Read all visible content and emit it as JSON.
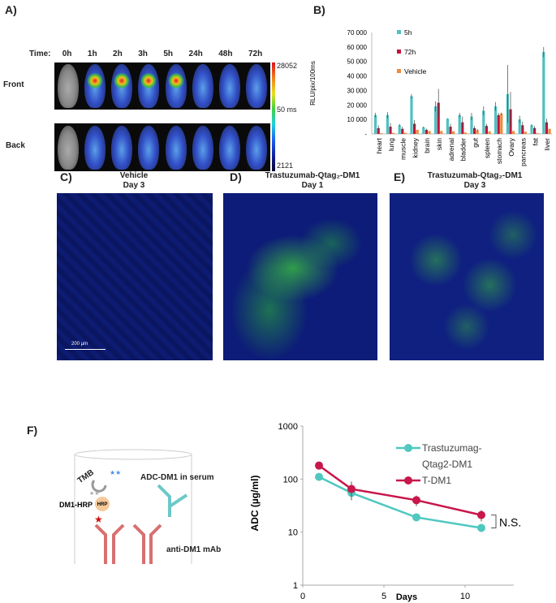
{
  "panelA": {
    "label": "A)",
    "time_label": "Time:",
    "times": [
      "0h",
      "1h",
      "2h",
      "3h",
      "5h",
      "24h",
      "48h",
      "72h"
    ],
    "rows": [
      "Front",
      "Back"
    ],
    "colorbar": {
      "max": "28052",
      "mid": "50 ms",
      "min": "2121"
    }
  },
  "panelB": {
    "label": "B)"
  },
  "chart_data": [
    {
      "type": "bar",
      "ylabel": "RLU/pix/100ms",
      "ylim": [
        0,
        70000
      ],
      "yticks": [
        "-",
        "10 000",
        "20 000",
        "30 000",
        "40 000",
        "50 000",
        "60 000",
        "70 000"
      ],
      "legend_position": "top-left",
      "categories": [
        "heart",
        "lung",
        "muscle",
        "kidney",
        "brain",
        "skin",
        "adrenal",
        "bladder",
        "gut",
        "spleen",
        "stomach",
        "Ovary",
        "pancreas",
        "fat",
        "liver"
      ],
      "series": [
        {
          "name": "5h",
          "color": "#4fc1c0",
          "values": [
            13000,
            13000,
            6000,
            26000,
            4500,
            19000,
            10500,
            13000,
            12000,
            16000,
            19000,
            27500,
            10000,
            6000,
            56500
          ],
          "errors": [
            1500,
            2000,
            800,
            1500,
            600,
            3500,
            300,
            1500,
            2500,
            3000,
            3000,
            20000,
            2500,
            700,
            3500
          ]
        },
        {
          "name": "72h",
          "color": "#c0143c",
          "values": [
            4000,
            5000,
            3500,
            7000,
            2800,
            21500,
            5000,
            8000,
            4000,
            5500,
            13000,
            17000,
            6000,
            4000,
            8000
          ],
          "errors": [
            2000,
            2500,
            1500,
            2500,
            800,
            9500,
            2000,
            4000,
            1500,
            1500,
            1500,
            12000,
            2500,
            1500,
            2500
          ]
        },
        {
          "name": "Vehicle",
          "color": "#f08a3c",
          "values": [
            500,
            700,
            800,
            2800,
            2000,
            2000,
            1800,
            1000,
            2500,
            1800,
            14000,
            2000,
            1500,
            500,
            3500
          ],
          "errors": [
            0,
            0,
            0,
            0,
            0,
            0,
            0,
            0,
            800,
            0,
            800,
            0,
            0,
            0,
            0
          ]
        }
      ]
    },
    {
      "type": "line",
      "xlabel": "Days",
      "ylabel": "ADC (µg/ml)",
      "yscale": "log",
      "ylim": [
        1,
        1000
      ],
      "xlim": [
        0,
        13
      ],
      "xticks": [
        "0",
        "5",
        "10"
      ],
      "yticks": [
        "1",
        "10",
        "100",
        "1000"
      ],
      "legend_position": "top-right",
      "annotation": "N.S.",
      "x": [
        1,
        3,
        7,
        11
      ],
      "series": [
        {
          "name": "Trastuzumag-Qtag2-DM1",
          "name_lines": [
            "Trastuzumag-",
            "Qtag2-DM1"
          ],
          "color": "#4fc8c0",
          "values": [
            110,
            55,
            19,
            12
          ],
          "errors": [
            0,
            12,
            0,
            2
          ]
        },
        {
          "name": "T-DM1",
          "color": "#c8174a",
          "values": [
            180,
            65,
            40,
            21
          ],
          "errors": [
            0,
            25,
            9,
            5
          ]
        }
      ]
    }
  ],
  "panelC": {
    "label": "C)",
    "title1": "Vehicle",
    "title2": "Day 3",
    "scale_bar": "200 µm"
  },
  "panelD": {
    "label": "D)",
    "title1": "Trastuzumab-Qtag₂-DM1",
    "title2": "Day 1"
  },
  "panelE": {
    "label": "E)",
    "title1": "Trastuzumab-Qtag₂-DM1",
    "title2": "Day 3"
  },
  "panelF": {
    "label": "F)",
    "tmb": "TMB",
    "adc_serum": "ADC-DM1 in serum",
    "dm1_hrp": "DM1-HRP",
    "hrp": "HRP",
    "anti_dm1": "anti-DM1 mAb"
  }
}
